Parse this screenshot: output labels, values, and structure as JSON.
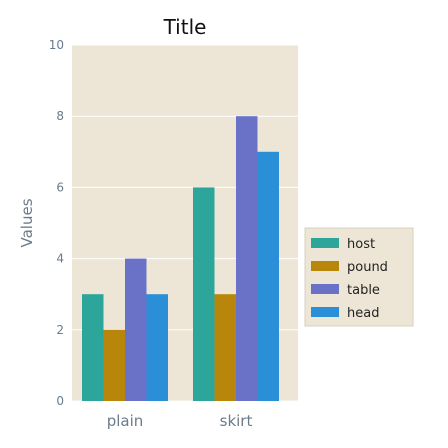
{
  "chart_data": {
    "type": "bar",
    "title": "Title",
    "xlabel": "",
    "ylabel": "Values",
    "categories": [
      "plain",
      "skirt"
    ],
    "series": [
      {
        "name": "host",
        "color": "#2ca59b",
        "values": [
          3,
          6
        ]
      },
      {
        "name": "pound",
        "color": "#b8860b",
        "values": [
          2,
          3
        ]
      },
      {
        "name": "table",
        "color": "#6a72c8",
        "values": [
          4,
          8
        ]
      },
      {
        "name": "head",
        "color": "#2b8fd8",
        "values": [
          3,
          7
        ]
      }
    ],
    "ylim": [
      0,
      10
    ],
    "yticks": [
      "0",
      "2",
      "4",
      "6",
      "8",
      "10"
    ],
    "grid": true,
    "legend_position": "right",
    "background_color": "#ede6d6",
    "grid_color": "#ffffff"
  }
}
